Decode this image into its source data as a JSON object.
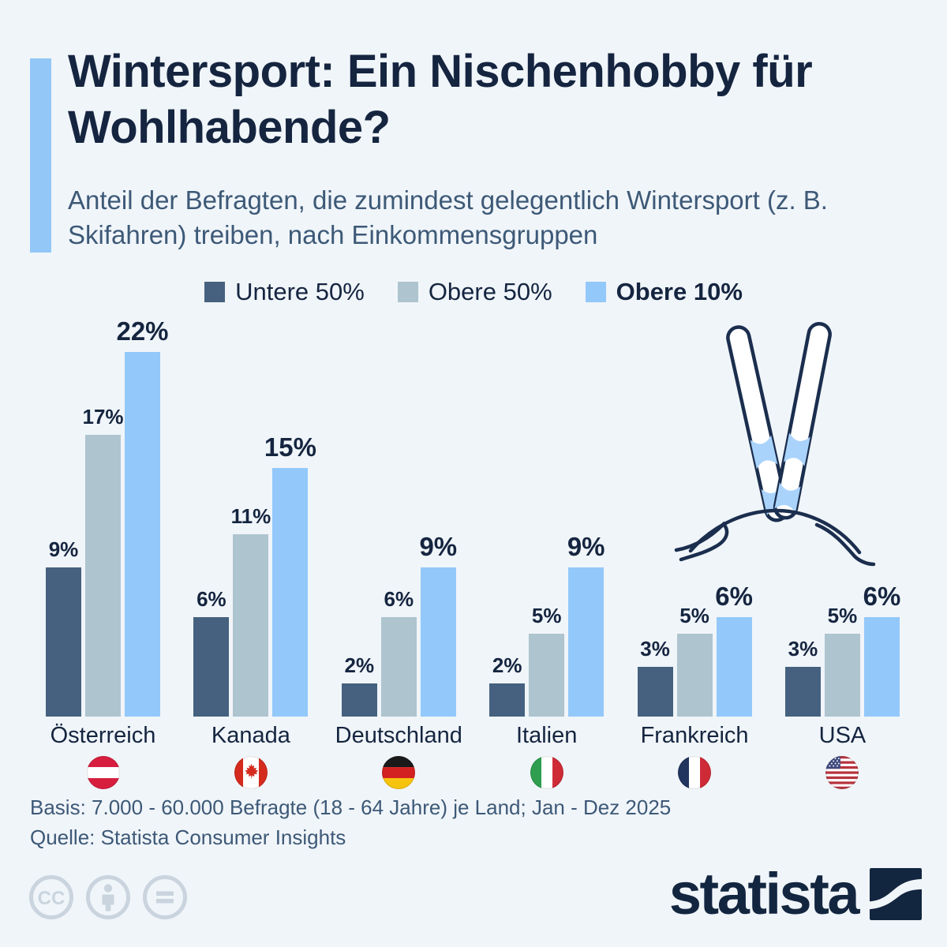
{
  "header": {
    "title": "Wintersport: Ein Nischenhobby für Wohlhabende?",
    "subtitle": "Anteil der Befragten, die zumindest gelegentlich Wintersport (z. B. Skifahren) treiben, nach Einkommensgruppen"
  },
  "chart_data": {
    "type": "bar",
    "categories": [
      "Österreich",
      "Kanada",
      "Deutschland",
      "Italien",
      "Frankreich",
      "USA"
    ],
    "series": [
      {
        "name": "Untere 50%",
        "color": "#45617f",
        "emphasized": false,
        "values": [
          9,
          6,
          2,
          2,
          3,
          3
        ]
      },
      {
        "name": "Obere 50%",
        "color": "#aec4cf",
        "emphasized": false,
        "values": [
          17,
          11,
          6,
          5,
          5,
          5
        ]
      },
      {
        "name": "Obere 10%",
        "color": "#93c8fa",
        "emphasized": true,
        "values": [
          22,
          15,
          9,
          9,
          6,
          6
        ]
      }
    ],
    "value_suffix": "%",
    "ylim": [
      0,
      23
    ],
    "grid": false,
    "legend_position": "top",
    "flags": [
      "austria",
      "canada",
      "germany",
      "italy",
      "france",
      "usa"
    ]
  },
  "footer": {
    "basis": "Basis: 7.000 - 60.000 Befragte (18 - 64 Jahre) je Land; Jan - Dez 2025",
    "source": "Quelle: Statista Consumer Insights"
  },
  "branding": {
    "logo_text": "statista"
  },
  "license_icons": [
    "cc",
    "by",
    "nd"
  ],
  "illustration": "skis-in-snow",
  "colors": {
    "background": "#f0f5f9",
    "title": "#152540",
    "subtitle": "#3d5977",
    "accent_bar": "#92c7f8",
    "outline": "#1b2e4e",
    "license_gray": "#c9d4de"
  }
}
